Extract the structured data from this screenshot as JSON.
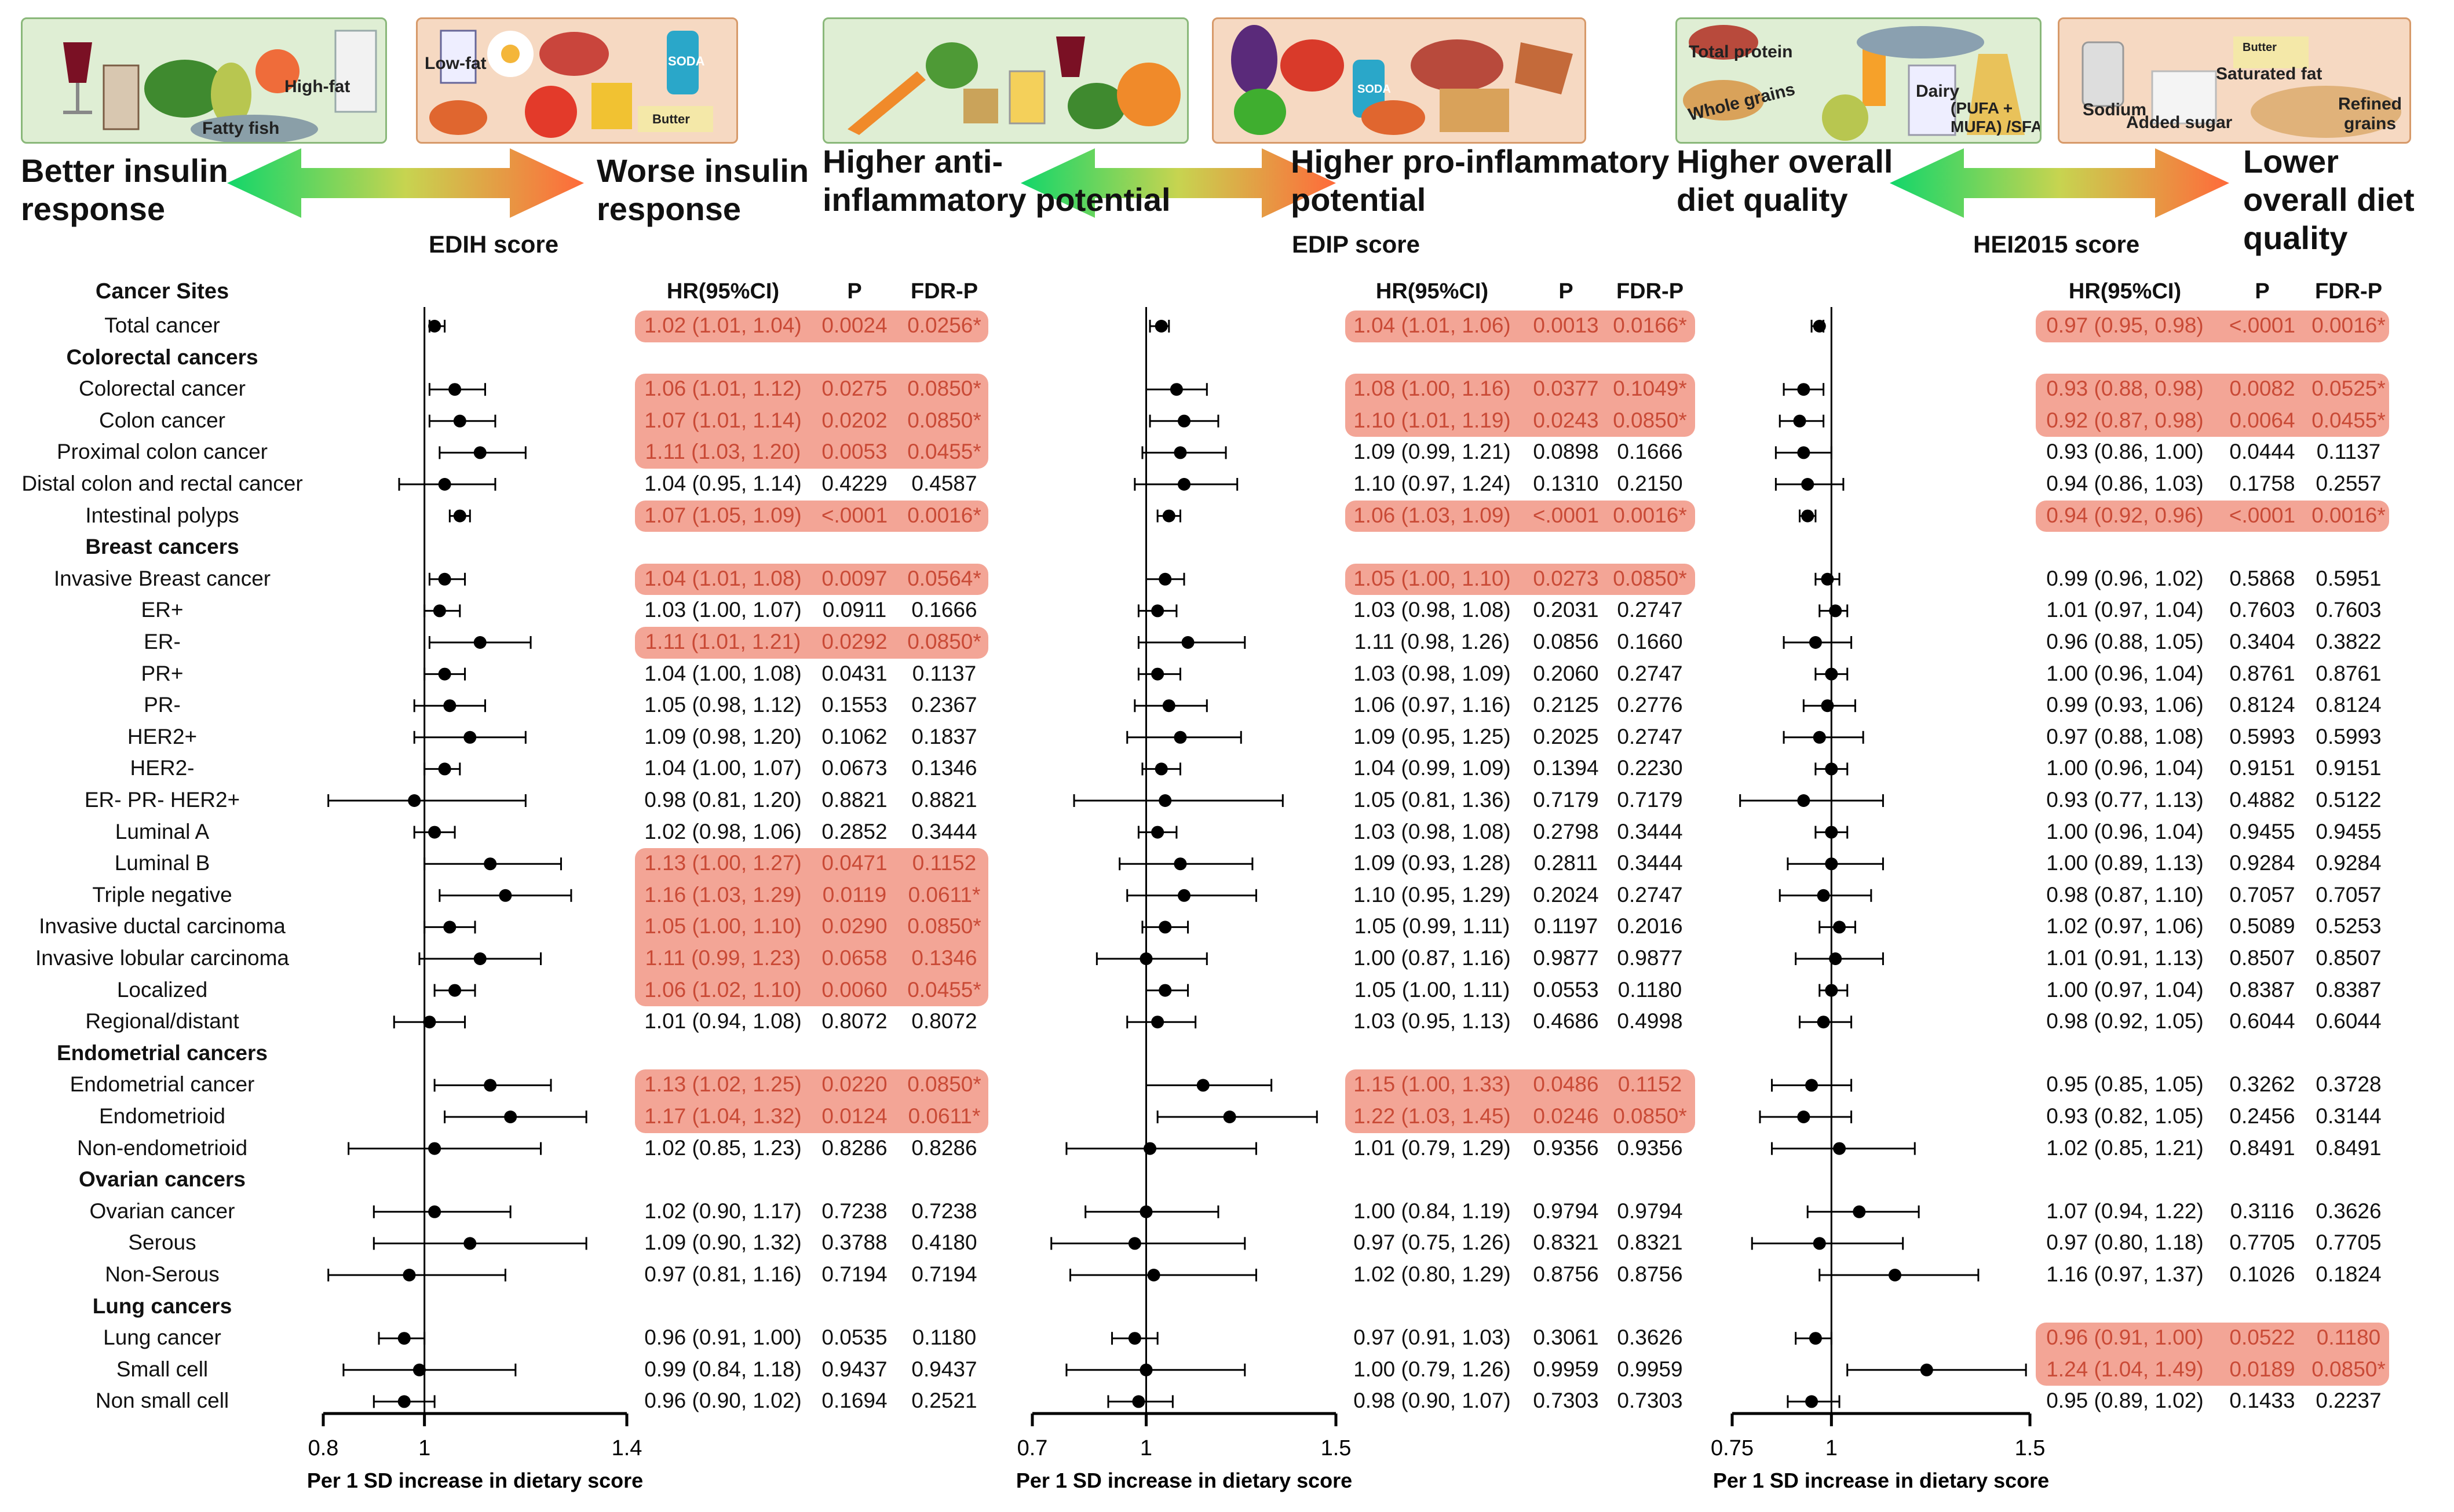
{
  "top_images": [
    {
      "labels": [
        "Fatty fish",
        "High-fat"
      ]
    },
    {
      "labels": [
        "Low-fat",
        "Butter",
        "SODA"
      ]
    },
    {
      "labels": []
    },
    {
      "labels": [
        "SODA"
      ]
    },
    {
      "labels": [
        "Total protein",
        "Whole grains",
        "Dairy",
        "(PUFA + MUFA) /SFA"
      ]
    },
    {
      "labels": [
        "Sodium",
        "Added sugar",
        "Saturated fat",
        "Refined grains",
        "Butter"
      ]
    }
  ],
  "panels": [
    {
      "left": "Better insulin response",
      "right": "Worse insulin response",
      "score": "EDIH score"
    },
    {
      "left": "Higher anti-inflammatory potential",
      "right": "Higher pro-inflammatory potential",
      "score": "EDIP score"
    },
    {
      "left": "Higher overall diet quality",
      "right": "Lower overall diet quality",
      "score": "HEI2015 score"
    }
  ],
  "headers": {
    "sites": "Cancer Sites",
    "hr": "HR(95%CI)",
    "p": "P",
    "fdr": "FDR-P"
  },
  "axis_label": "Per 1 SD increase in dietary score",
  "rows": [
    {
      "label": "Total cancer",
      "header": false
    },
    {
      "label": "Colorectal cancers",
      "header": true
    },
    {
      "label": "Colorectal cancer",
      "header": false
    },
    {
      "label": "Colon cancer",
      "header": false
    },
    {
      "label": "Proximal colon cancer",
      "header": false
    },
    {
      "label": "Distal colon and rectal cancer",
      "header": false
    },
    {
      "label": "Intestinal polyps",
      "header": false
    },
    {
      "label": "Breast cancers",
      "header": true
    },
    {
      "label": "Invasive Breast cancer",
      "header": false
    },
    {
      "label": "ER+",
      "header": false
    },
    {
      "label": "ER-",
      "header": false
    },
    {
      "label": "PR+",
      "header": false
    },
    {
      "label": "PR-",
      "header": false
    },
    {
      "label": "HER2+",
      "header": false
    },
    {
      "label": "HER2-",
      "header": false
    },
    {
      "label": "ER- PR- HER2+",
      "header": false
    },
    {
      "label": "Luminal A",
      "header": false
    },
    {
      "label": "Luminal B",
      "header": false
    },
    {
      "label": "Triple negative",
      "header": false
    },
    {
      "label": "Invasive ductal carcinoma",
      "header": false
    },
    {
      "label": "Invasive lobular carcinoma",
      "header": false
    },
    {
      "label": "Localized",
      "header": false
    },
    {
      "label": "Regional/distant",
      "header": false
    },
    {
      "label": "Endometrial cancers",
      "header": true
    },
    {
      "label": "Endometrial cancer",
      "header": false
    },
    {
      "label": "Endometrioid",
      "header": false
    },
    {
      "label": "Non-endometrioid",
      "header": false
    },
    {
      "label": "Ovarian cancers",
      "header": true
    },
    {
      "label": "Ovarian cancer",
      "header": false
    },
    {
      "label": "Serous",
      "header": false
    },
    {
      "label": "Non-Serous",
      "header": false
    },
    {
      "label": "Lung cancers",
      "header": true
    },
    {
      "label": "Lung cancer",
      "header": false
    },
    {
      "label": "Small cell",
      "header": false
    },
    {
      "label": "Non small cell",
      "header": false
    }
  ],
  "chart_data": [
    {
      "type": "forest",
      "title": "EDIH score",
      "xlabel": "Per 1 SD increase in dietary score",
      "xlim": [
        0.8,
        1.4
      ],
      "xticks": [
        0.8,
        1,
        1.4
      ],
      "reference": 1,
      "values": [
        [
          1.02,
          1.01,
          1.04,
          "0.0024",
          "0.0256*",
          true
        ],
        null,
        [
          1.06,
          1.01,
          1.12,
          "0.0275",
          "0.0850*",
          true
        ],
        [
          1.07,
          1.01,
          1.14,
          "0.0202",
          "0.0850*",
          true
        ],
        [
          1.11,
          1.03,
          1.2,
          "0.0053",
          "0.0455*",
          true
        ],
        [
          1.04,
          0.95,
          1.14,
          "0.4229",
          "0.4587",
          false
        ],
        [
          1.07,
          1.05,
          1.09,
          "<.0001",
          "0.0016*",
          true
        ],
        null,
        [
          1.04,
          1.01,
          1.08,
          "0.0097",
          "0.0564*",
          true
        ],
        [
          1.03,
          1.0,
          1.07,
          "0.0911",
          "0.1666",
          false
        ],
        [
          1.11,
          1.01,
          1.21,
          "0.0292",
          "0.0850*",
          true
        ],
        [
          1.04,
          1.0,
          1.08,
          "0.0431",
          "0.1137",
          false
        ],
        [
          1.05,
          0.98,
          1.12,
          "0.1553",
          "0.2367",
          false
        ],
        [
          1.09,
          0.98,
          1.2,
          "0.1062",
          "0.1837",
          false
        ],
        [
          1.04,
          1.0,
          1.07,
          "0.0673",
          "0.1346",
          false
        ],
        [
          0.98,
          0.81,
          1.2,
          "0.8821",
          "0.8821",
          false
        ],
        [
          1.02,
          0.98,
          1.06,
          "0.2852",
          "0.3444",
          false
        ],
        [
          1.13,
          1.0,
          1.27,
          "0.0471",
          "0.1152",
          true
        ],
        [
          1.16,
          1.03,
          1.29,
          "0.0119",
          "0.0611*",
          true
        ],
        [
          1.05,
          1.0,
          1.1,
          "0.0290",
          "0.0850*",
          true
        ],
        [
          1.11,
          0.99,
          1.23,
          "0.0658",
          "0.1346",
          true
        ],
        [
          1.06,
          1.02,
          1.1,
          "0.0060",
          "0.0455*",
          true
        ],
        [
          1.01,
          0.94,
          1.08,
          "0.8072",
          "0.8072",
          false
        ],
        null,
        [
          1.13,
          1.02,
          1.25,
          "0.0220",
          "0.0850*",
          true
        ],
        [
          1.17,
          1.04,
          1.32,
          "0.0124",
          "0.0611*",
          true
        ],
        [
          1.02,
          0.85,
          1.23,
          "0.8286",
          "0.8286",
          false
        ],
        null,
        [
          1.02,
          0.9,
          1.17,
          "0.7238",
          "0.7238",
          false
        ],
        [
          1.09,
          0.9,
          1.32,
          "0.3788",
          "0.4180",
          false
        ],
        [
          0.97,
          0.81,
          1.16,
          "0.7194",
          "0.7194",
          false
        ],
        null,
        [
          0.96,
          0.91,
          1.0,
          "0.0535",
          "0.1180",
          false
        ],
        [
          0.99,
          0.84,
          1.18,
          "0.9437",
          "0.9437",
          false
        ],
        [
          0.96,
          0.9,
          1.02,
          "0.1694",
          "0.2521",
          false
        ]
      ]
    },
    {
      "type": "forest",
      "title": "EDIP score",
      "xlabel": "Per 1 SD increase in dietary score",
      "xlim": [
        0.7,
        1.5
      ],
      "xticks": [
        0.7,
        1,
        1.5
      ],
      "reference": 1,
      "values": [
        [
          1.04,
          1.01,
          1.06,
          "0.0013",
          "0.0166*",
          true
        ],
        null,
        [
          1.08,
          1.0,
          1.16,
          "0.0377",
          "0.1049*",
          true
        ],
        [
          1.1,
          1.01,
          1.19,
          "0.0243",
          "0.0850*",
          true
        ],
        [
          1.09,
          0.99,
          1.21,
          "0.0898",
          "0.1666",
          false
        ],
        [
          1.1,
          0.97,
          1.24,
          "0.1310",
          "0.2150",
          false
        ],
        [
          1.06,
          1.03,
          1.09,
          "<.0001",
          "0.0016*",
          true
        ],
        null,
        [
          1.05,
          1.0,
          1.1,
          "0.0273",
          "0.0850*",
          true
        ],
        [
          1.03,
          0.98,
          1.08,
          "0.2031",
          "0.2747",
          false
        ],
        [
          1.11,
          0.98,
          1.26,
          "0.0856",
          "0.1660",
          false
        ],
        [
          1.03,
          0.98,
          1.09,
          "0.2060",
          "0.2747",
          false
        ],
        [
          1.06,
          0.97,
          1.16,
          "0.2125",
          "0.2776",
          false
        ],
        [
          1.09,
          0.95,
          1.25,
          "0.2025",
          "0.2747",
          false
        ],
        [
          1.04,
          0.99,
          1.09,
          "0.1394",
          "0.2230",
          false
        ],
        [
          1.05,
          0.81,
          1.36,
          "0.7179",
          "0.7179",
          false
        ],
        [
          1.03,
          0.98,
          1.08,
          "0.2798",
          "0.3444",
          false
        ],
        [
          1.09,
          0.93,
          1.28,
          "0.2811",
          "0.3444",
          false
        ],
        [
          1.1,
          0.95,
          1.29,
          "0.2024",
          "0.2747",
          false
        ],
        [
          1.05,
          0.99,
          1.11,
          "0.1197",
          "0.2016",
          false
        ],
        [
          1.0,
          0.87,
          1.16,
          "0.9877",
          "0.9877",
          false
        ],
        [
          1.05,
          1.0,
          1.11,
          "0.0553",
          "0.1180",
          false
        ],
        [
          1.03,
          0.95,
          1.13,
          "0.4686",
          "0.4998",
          false
        ],
        null,
        [
          1.15,
          1.0,
          1.33,
          "0.0486",
          "0.1152",
          true
        ],
        [
          1.22,
          1.03,
          1.45,
          "0.0246",
          "0.0850*",
          true
        ],
        [
          1.01,
          0.79,
          1.29,
          "0.9356",
          "0.9356",
          false
        ],
        null,
        [
          1.0,
          0.84,
          1.19,
          "0.9794",
          "0.9794",
          false
        ],
        [
          0.97,
          0.75,
          1.26,
          "0.8321",
          "0.8321",
          false
        ],
        [
          1.02,
          0.8,
          1.29,
          "0.8756",
          "0.8756",
          false
        ],
        null,
        [
          0.97,
          0.91,
          1.03,
          "0.3061",
          "0.3626",
          false
        ],
        [
          1.0,
          0.79,
          1.26,
          "0.9959",
          "0.9959",
          false
        ],
        [
          0.98,
          0.9,
          1.07,
          "0.7303",
          "0.7303",
          false
        ]
      ]
    },
    {
      "type": "forest",
      "title": "HEI2015 score",
      "xlabel": "Per 1 SD increase in dietary score",
      "xlim": [
        0.75,
        1.5
      ],
      "xticks": [
        0.75,
        1,
        1.5
      ],
      "reference": 1,
      "values": [
        [
          0.97,
          0.95,
          0.98,
          "<.0001",
          "0.0016*",
          true
        ],
        null,
        [
          0.93,
          0.88,
          0.98,
          "0.0082",
          "0.0525*",
          true
        ],
        [
          0.92,
          0.87,
          0.98,
          "0.0064",
          "0.0455*",
          true
        ],
        [
          0.93,
          0.86,
          1.0,
          "0.0444",
          "0.1137",
          false
        ],
        [
          0.94,
          0.86,
          1.03,
          "0.1758",
          "0.2557",
          false
        ],
        [
          0.94,
          0.92,
          0.96,
          "<.0001",
          "0.0016*",
          true
        ],
        null,
        [
          0.99,
          0.96,
          1.02,
          "0.5868",
          "0.5951",
          false
        ],
        [
          1.01,
          0.97,
          1.04,
          "0.7603",
          "0.7603",
          false
        ],
        [
          0.96,
          0.88,
          1.05,
          "0.3404",
          "0.3822",
          false
        ],
        [
          1.0,
          0.96,
          1.04,
          "0.8761",
          "0.8761",
          false
        ],
        [
          0.99,
          0.93,
          1.06,
          "0.8124",
          "0.8124",
          false
        ],
        [
          0.97,
          0.88,
          1.08,
          "0.5993",
          "0.5993",
          false
        ],
        [
          1.0,
          0.96,
          1.04,
          "0.9151",
          "0.9151",
          false
        ],
        [
          0.93,
          0.77,
          1.13,
          "0.4882",
          "0.5122",
          false
        ],
        [
          1.0,
          0.96,
          1.04,
          "0.9455",
          "0.9455",
          false
        ],
        [
          1.0,
          0.89,
          1.13,
          "0.9284",
          "0.9284",
          false
        ],
        [
          0.98,
          0.87,
          1.1,
          "0.7057",
          "0.7057",
          false
        ],
        [
          1.02,
          0.97,
          1.06,
          "0.5089",
          "0.5253",
          false
        ],
        [
          1.01,
          0.91,
          1.13,
          "0.8507",
          "0.8507",
          false
        ],
        [
          1.0,
          0.97,
          1.04,
          "0.8387",
          "0.8387",
          false
        ],
        [
          0.98,
          0.92,
          1.05,
          "0.6044",
          "0.6044",
          false
        ],
        null,
        [
          0.95,
          0.85,
          1.05,
          "0.3262",
          "0.3728",
          false
        ],
        [
          0.93,
          0.82,
          1.05,
          "0.2456",
          "0.3144",
          false
        ],
        [
          1.02,
          0.85,
          1.21,
          "0.8491",
          "0.8491",
          false
        ],
        null,
        [
          1.07,
          0.94,
          1.22,
          "0.3116",
          "0.3626",
          false
        ],
        [
          0.97,
          0.8,
          1.18,
          "0.7705",
          "0.7705",
          false
        ],
        [
          1.16,
          0.97,
          1.37,
          "0.1026",
          "0.1824",
          false
        ],
        null,
        [
          0.96,
          0.91,
          1.0,
          "0.0522",
          "0.1180",
          true
        ],
        [
          1.24,
          1.04,
          1.49,
          "0.0189",
          "0.0850*",
          true
        ],
        [
          0.95,
          0.89,
          1.02,
          "0.1433",
          "0.2237",
          false
        ]
      ]
    }
  ]
}
